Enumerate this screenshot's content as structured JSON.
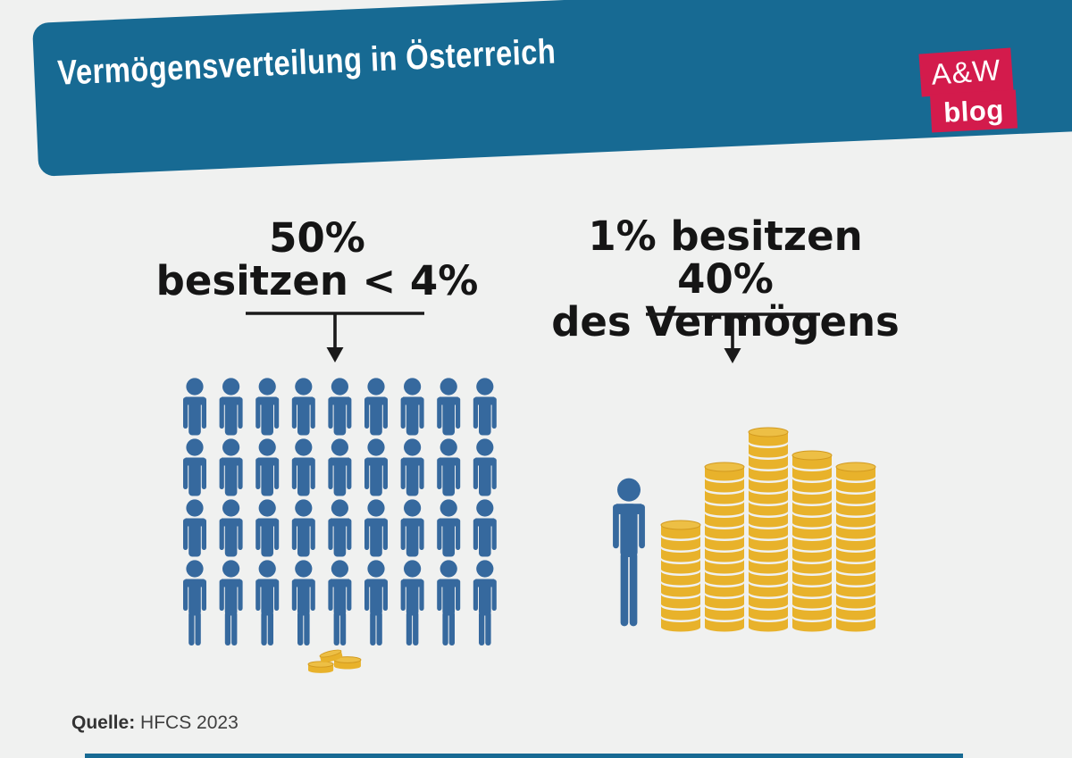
{
  "header": {
    "title": "Vermögensverteilung in Österreich",
    "background_color": "#176a93",
    "logo": {
      "line1": "A&W",
      "line2": "blog",
      "color": "#d31b4c"
    }
  },
  "chart_data": {
    "type": "pictogram",
    "title": "Vermögensverteilung in Österreich",
    "source": "HFCS 2023",
    "groups": [
      {
        "label": "50% besitzen < 4%",
        "label_lines": [
          "50%",
          "besitzen < 4%"
        ],
        "population_share_pct": 50,
        "wealth_share_pct": "< 4",
        "person_icons": 36,
        "grid": {
          "rows": 4,
          "cols": 9
        },
        "coin_pile_coins": 3
      },
      {
        "label": "1% besitzen 40% des Vermögens",
        "label_lines": [
          "1% besitzen 40%",
          "des Vermögens"
        ],
        "population_share_pct": 1,
        "wealth_share_pct": 40,
        "person_icons": 1,
        "coin_stacks": [
          9,
          14,
          17,
          15,
          14
        ]
      }
    ],
    "colors": {
      "person": "#36699e",
      "coin": "#e8b22b",
      "coin_top": "#edbf45",
      "coin_edge": "#d29a20",
      "annotation": "#1a1a1a",
      "teal": "#176a93",
      "red": "#d31b4c",
      "background": "#f0f1f0"
    }
  },
  "footer": {
    "source_label": "Quelle:",
    "source_value": "HFCS 2023"
  }
}
